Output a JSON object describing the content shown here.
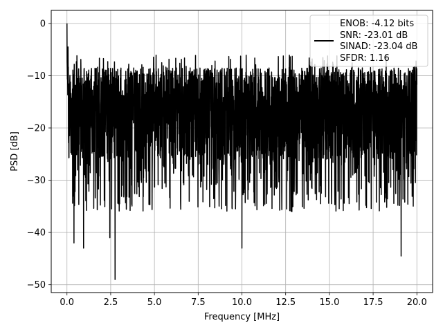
{
  "chart_data": {
    "type": "line",
    "title": "",
    "xlabel": "Frequency [MHz]",
    "ylabel": "PSD [dB]",
    "xlim": [
      -0.9,
      20.9
    ],
    "ylim": [
      -51.5,
      2.5
    ],
    "xticks": [
      0.0,
      2.5,
      5.0,
      7.5,
      10.0,
      12.5,
      15.0,
      17.5,
      20.0
    ],
    "xtick_labels": [
      "0.0",
      "2.5",
      "5.0",
      "7.5",
      "10.0",
      "12.5",
      "15.0",
      "17.5",
      "20.0"
    ],
    "yticks": [
      0,
      -10,
      -20,
      -30,
      -40,
      -50
    ],
    "ytick_labels": [
      "0",
      "−10",
      "−20",
      "−30",
      "−40",
      "−50"
    ],
    "grid": true,
    "legend_position": "top-right",
    "line_color": "#000000",
    "series": [
      {
        "name": "ENOB: -4.12 bits\nSNR: -23.01 dB\nSINAD: -23.04 dB\nSFDR: 1.16",
        "description": "noisy PSD, dense spikes between about -8 and -30 dB, band-limited 0 to 20 MHz",
        "x_range": [
          0,
          20
        ],
        "peak": {
          "x": 0.0,
          "y": 0.0
        },
        "typical_upper": -8,
        "typical_lower": -30,
        "notable_dips": [
          {
            "x": 0.4,
            "y": -42
          },
          {
            "x": 0.95,
            "y": -43
          },
          {
            "x": 2.45,
            "y": -41
          },
          {
            "x": 2.75,
            "y": -49
          },
          {
            "x": 10.0,
            "y": -43
          },
          {
            "x": 19.1,
            "y": -44.5
          }
        ]
      }
    ],
    "legend_lines": [
      "ENOB: -4.12 bits",
      "SNR: -23.01 dB",
      "SINAD: -23.04 dB",
      "SFDR: 1.16"
    ]
  }
}
